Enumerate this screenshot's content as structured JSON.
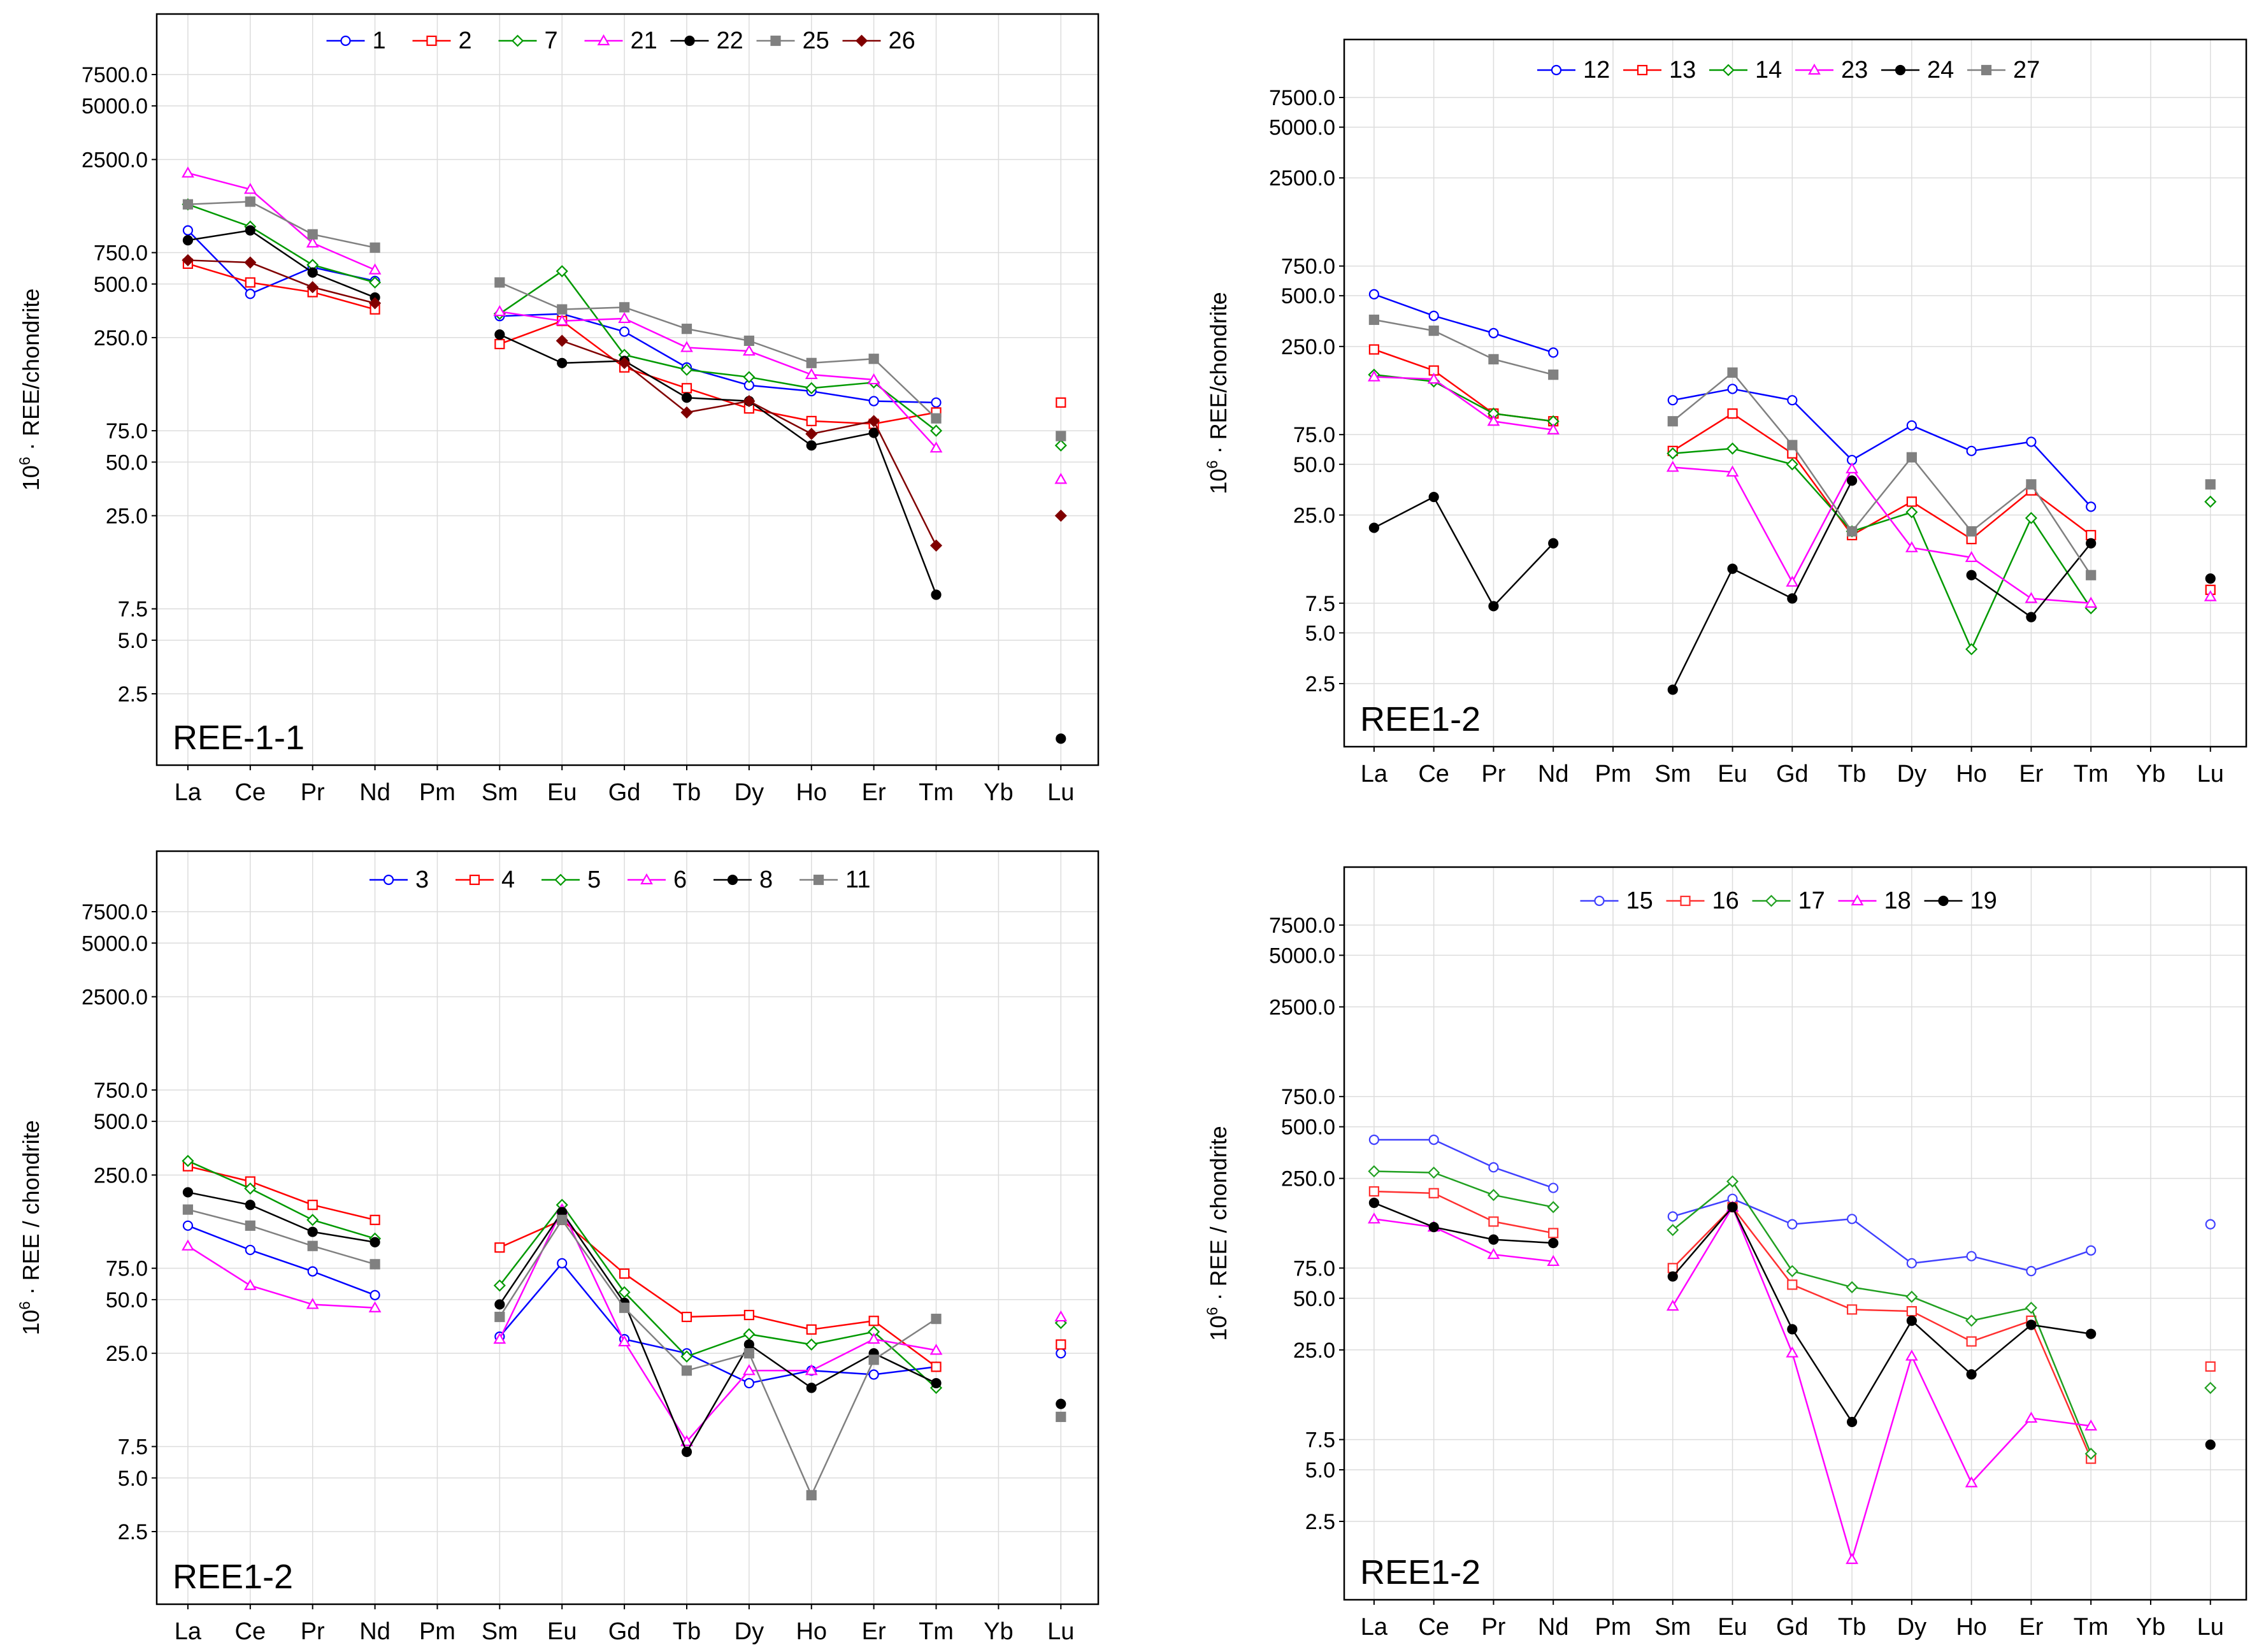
{
  "figure": {
    "categories": [
      "La",
      "Ce",
      "Pr",
      "Nd",
      "Pm",
      "Sm",
      "Eu",
      "Gd",
      "Tb",
      "Dy",
      "Ho",
      "Er",
      "Tm",
      "Yb",
      "Lu"
    ],
    "ylabel_prefix": "10",
    "ylabel_exponent": "6",
    "ylabel_dot": "·"
  },
  "chart_data": [
    {
      "type": "line",
      "title": "REE-1-1",
      "ylabel": "REE/chondrite",
      "yscale": "log",
      "ylim": [
        1,
        14000
      ],
      "yticks": [
        "7500.0",
        "5000.0",
        "2500.0",
        "750.0",
        "500.0",
        "250.0",
        "75.0",
        "50.0",
        "25.0",
        "7.5",
        "5.0",
        "2.5"
      ],
      "grid": true,
      "legend": "top",
      "series": [
        {
          "name": "1",
          "color": "#0000ff",
          "marker": "circle-open",
          "values": [
            1000,
            440,
            620,
            520,
            null,
            330,
            340,
            270,
            170,
            135,
            125,
            110,
            108,
            null,
            null
          ]
        },
        {
          "name": "2",
          "color": "#ff0000",
          "marker": "square-open",
          "values": [
            650,
            510,
            450,
            360,
            null,
            230,
            310,
            170,
            130,
            100,
            85,
            82,
            95,
            null,
            108
          ]
        },
        {
          "name": "7",
          "color": "#009900",
          "marker": "diamond-open",
          "values": [
            1400,
            1050,
            640,
            510,
            null,
            340,
            590,
            200,
            165,
            150,
            130,
            140,
            75,
            null,
            62
          ]
        },
        {
          "name": "21",
          "color": "#ff00ff",
          "marker": "triangle-open",
          "values": [
            2100,
            1700,
            850,
            600,
            null,
            350,
            310,
            320,
            220,
            210,
            155,
            145,
            60,
            null,
            40
          ]
        },
        {
          "name": "22",
          "color": "#000000",
          "marker": "circle-filled",
          "values": [
            880,
            1000,
            580,
            420,
            null,
            260,
            180,
            185,
            115,
            110,
            62,
            73,
            9,
            null,
            1.4
          ]
        },
        {
          "name": "25",
          "color": "#808080",
          "marker": "square-filled",
          "values": [
            1400,
            1450,
            950,
            800,
            null,
            510,
            360,
            370,
            280,
            240,
            180,
            190,
            88,
            null,
            70
          ]
        },
        {
          "name": "26",
          "color": "#800000",
          "marker": "diamond-filled",
          "values": [
            680,
            660,
            480,
            390,
            null,
            null,
            240,
            180,
            95,
            110,
            72,
            85,
            17,
            null,
            25
          ]
        }
      ]
    },
    {
      "type": "line",
      "title": "REE1-2",
      "ylabel": "REE/chondrite",
      "yscale": "log",
      "ylim": [
        1,
        14000
      ],
      "yticks": [
        "7500.0",
        "5000.0",
        "2500.0",
        "750.0",
        "500.0",
        "250.0",
        "75.0",
        "50.0",
        "25.0",
        "7.5",
        "5.0",
        "2.5"
      ],
      "grid": true,
      "legend": "top",
      "series": [
        {
          "name": "12",
          "color": "#0000ff",
          "marker": "circle-open",
          "values": [
            510,
            380,
            300,
            230,
            null,
            120,
            140,
            120,
            53,
            85,
            60,
            68,
            28,
            null,
            null
          ]
        },
        {
          "name": "13",
          "color": "#ff0000",
          "marker": "square-open",
          "values": [
            240,
            180,
            100,
            90,
            null,
            60,
            100,
            58,
            19,
            30,
            18,
            35,
            19,
            null,
            9
          ]
        },
        {
          "name": "14",
          "color": "#009900",
          "marker": "diamond-open",
          "values": [
            170,
            155,
            100,
            90,
            null,
            58,
            62,
            50,
            20,
            26,
            4,
            24,
            7,
            null,
            30
          ]
        },
        {
          "name": "23",
          "color": "#ff00ff",
          "marker": "triangle-open",
          "values": [
            165,
            160,
            90,
            80,
            null,
            48,
            45,
            10,
            47,
            16,
            14,
            8,
            7.5,
            null,
            8.2
          ]
        },
        {
          "name": "24",
          "color": "#000000",
          "marker": "circle-filled",
          "values": [
            21,
            32,
            7.2,
            17,
            null,
            2.3,
            12,
            8,
            40,
            null,
            11,
            6.2,
            17,
            null,
            10.5
          ]
        },
        {
          "name": "27",
          "color": "#808080",
          "marker": "square-filled",
          "values": [
            360,
            310,
            210,
            170,
            null,
            90,
            175,
            65,
            20,
            55,
            20,
            38,
            11,
            null,
            38
          ]
        }
      ]
    },
    {
      "type": "line",
      "title": "REE1-2",
      "ylabel": "REE / chondrite",
      "yscale": "log",
      "ylim": [
        1,
        14000
      ],
      "yticks": [
        "7500.0",
        "5000.0",
        "2500.0",
        "750.0",
        "500.0",
        "250.0",
        "75.0",
        "50.0",
        "25.0",
        "7.5",
        "5.0",
        "2.5"
      ],
      "grid": true,
      "legend": "top",
      "series": [
        {
          "name": "3",
          "color": "#0000ff",
          "marker": "circle-open",
          "values": [
            130,
            95,
            72,
            53,
            null,
            31,
            80,
            30,
            25,
            17,
            20,
            19,
            21,
            null,
            25
          ]
        },
        {
          "name": "4",
          "color": "#ff0000",
          "marker": "square-open",
          "values": [
            280,
            230,
            170,
            140,
            null,
            98,
            140,
            70,
            40,
            41,
            34,
            38,
            21,
            null,
            28
          ]
        },
        {
          "name": "5",
          "color": "#009900",
          "marker": "diamond-open",
          "values": [
            300,
            210,
            140,
            110,
            null,
            60,
            170,
            55,
            24,
            32,
            28,
            33,
            16,
            null,
            37
          ]
        },
        {
          "name": "6",
          "color": "#ff00ff",
          "marker": "triangle-open",
          "values": [
            100,
            60,
            47,
            45,
            null,
            30,
            160,
            29,
            8,
            20,
            20,
            30,
            26,
            null,
            40
          ]
        },
        {
          "name": "8",
          "color": "#000000",
          "marker": "circle-filled",
          "values": [
            200,
            170,
            120,
            105,
            null,
            47,
            155,
            48,
            7,
            28,
            16,
            25,
            17,
            null,
            13
          ]
        },
        {
          "name": "11",
          "color": "#808080",
          "marker": "square-filled",
          "values": [
            160,
            130,
            100,
            79,
            null,
            40,
            140,
            45,
            20,
            25,
            4,
            23,
            39,
            null,
            11
          ]
        }
      ]
    },
    {
      "type": "line",
      "title": "REE1-2",
      "ylabel": "REE / chondrite",
      "yscale": "log",
      "ylim": [
        1,
        14000
      ],
      "yticks": [
        "7500.0",
        "5000.0",
        "2500.0",
        "750.0",
        "500.0",
        "250.0",
        "75.0",
        "50.0",
        "25.0",
        "7.5",
        "5.0",
        "2.5"
      ],
      "grid": true,
      "legend": "top",
      "series": [
        {
          "name": "15",
          "color": "#4040ff",
          "marker": "circle-open",
          "values": [
            420,
            420,
            290,
            220,
            null,
            150,
            190,
            135,
            145,
            80,
            88,
            72,
            95,
            null,
            135
          ]
        },
        {
          "name": "16",
          "color": "#ff3030",
          "marker": "square-open",
          "values": [
            210,
            205,
            140,
            120,
            null,
            75,
            170,
            60,
            43,
            42,
            28,
            37,
            5.8,
            null,
            20
          ]
        },
        {
          "name": "17",
          "color": "#20a020",
          "marker": "diamond-open",
          "values": [
            275,
            270,
            200,
            170,
            null,
            125,
            240,
            72,
            58,
            51,
            37,
            44,
            6.2,
            null,
            15
          ]
        },
        {
          "name": "18",
          "color": "#ff00ff",
          "marker": "triangle-open",
          "values": [
            145,
            130,
            90,
            82,
            null,
            45,
            170,
            24,
            1.5,
            23,
            4.2,
            10,
            9,
            null,
            null
          ]
        },
        {
          "name": "19",
          "color": "#000000",
          "marker": "circle-filled",
          "values": [
            180,
            130,
            110,
            105,
            null,
            67,
            170,
            33,
            9.5,
            37,
            18,
            35,
            31,
            null,
            7
          ]
        }
      ]
    }
  ]
}
